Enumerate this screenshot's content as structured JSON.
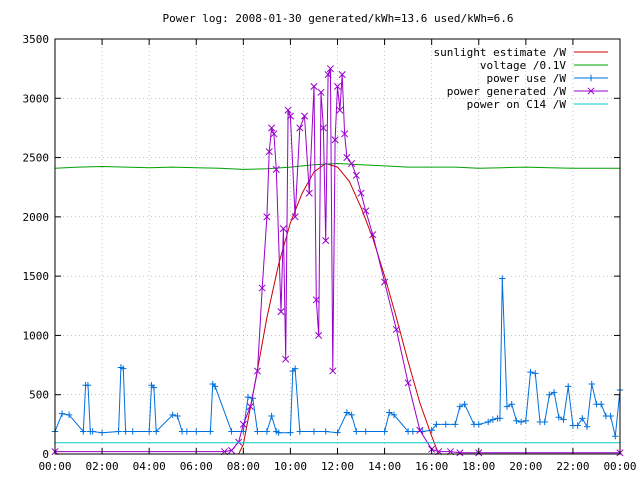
{
  "chart_data": {
    "type": "line",
    "title": "Power log: 2008-01-30 generated/kWh=13.6 used/kWh=6.6",
    "xlabel": "",
    "ylabel": "",
    "x_unit": "hours",
    "xlim": [
      0,
      24
    ],
    "ylim": [
      0,
      3500
    ],
    "grid": true,
    "legend_position": "top-right",
    "x_ticks": [
      {
        "value": 0,
        "label": "00:00"
      },
      {
        "value": 2,
        "label": "02:00"
      },
      {
        "value": 4,
        "label": "04:00"
      },
      {
        "value": 6,
        "label": "06:00"
      },
      {
        "value": 8,
        "label": "08:00"
      },
      {
        "value": 10,
        "label": "10:00"
      },
      {
        "value": 12,
        "label": "12:00"
      },
      {
        "value": 14,
        "label": "14:00"
      },
      {
        "value": 16,
        "label": "16:00"
      },
      {
        "value": 18,
        "label": "18:00"
      },
      {
        "value": 20,
        "label": "20:00"
      },
      {
        "value": 22,
        "label": "22:00"
      },
      {
        "value": 24,
        "label": "00:00"
      }
    ],
    "y_ticks": [
      0,
      500,
      1000,
      1500,
      2000,
      2500,
      3000,
      3500
    ],
    "series": [
      {
        "name": "sunlight estimate /W",
        "color": "#cc0000",
        "marker": "none",
        "x": [
          0,
          7.8,
          8.0,
          8.5,
          9.0,
          9.5,
          10.0,
          10.5,
          11.0,
          11.5,
          12.0,
          12.5,
          13.0,
          13.5,
          14.0,
          14.5,
          15.0,
          15.5,
          16.0,
          16.3,
          24
        ],
        "y": [
          0,
          0,
          80,
          600,
          1150,
          1600,
          1950,
          2200,
          2380,
          2450,
          2420,
          2300,
          2080,
          1820,
          1500,
          1150,
          780,
          430,
          150,
          0,
          0
        ]
      },
      {
        "name": "voltage /0.1V",
        "color": "#00a000",
        "marker": "none",
        "x": [
          0,
          1,
          2,
          3,
          4,
          5,
          6,
          7,
          8,
          9,
          10,
          11,
          12,
          13,
          14,
          15,
          16,
          17,
          18,
          19,
          20,
          21,
          22,
          23,
          24
        ],
        "y": [
          2410,
          2420,
          2425,
          2420,
          2415,
          2420,
          2415,
          2410,
          2400,
          2405,
          2420,
          2440,
          2450,
          2440,
          2430,
          2420,
          2420,
          2420,
          2410,
          2415,
          2420,
          2415,
          2410,
          2410,
          2410
        ]
      },
      {
        "name": "power use /W",
        "color": "#0070dd",
        "marker": "plus",
        "x": [
          0,
          0.3,
          0.6,
          1.2,
          1.3,
          1.4,
          1.5,
          1.6,
          2.0,
          2.7,
          2.8,
          2.9,
          3.0,
          3.3,
          4.0,
          4.1,
          4.2,
          4.3,
          5.0,
          5.2,
          5.4,
          5.6,
          6.0,
          6.6,
          6.7,
          6.8,
          7.5,
          8.0,
          8.2,
          8.4,
          8.6,
          9.0,
          9.2,
          9.4,
          9.5,
          10.0,
          10.1,
          10.2,
          10.4,
          11.0,
          11.5,
          12.0,
          12.4,
          12.6,
          12.8,
          13.2,
          14.0,
          14.2,
          14.4,
          15.0,
          15.2,
          15.6,
          16.0,
          16.2,
          16.6,
          17.0,
          17.2,
          17.4,
          17.8,
          18.0,
          18.4,
          18.6,
          18.8,
          18.9,
          19.0,
          19.2,
          19.4,
          19.6,
          19.8,
          20.0,
          20.2,
          20.4,
          20.6,
          20.8,
          21.0,
          21.2,
          21.4,
          21.6,
          21.8,
          22.0,
          22.2,
          22.4,
          22.6,
          22.8,
          23.0,
          23.2,
          23.4,
          23.6,
          23.8,
          24.0
        ],
        "y": [
          190,
          340,
          330,
          190,
          580,
          580,
          190,
          190,
          180,
          190,
          730,
          720,
          190,
          190,
          190,
          580,
          560,
          190,
          330,
          320,
          190,
          190,
          190,
          190,
          590,
          570,
          190,
          190,
          480,
          470,
          190,
          190,
          320,
          190,
          180,
          180,
          700,
          720,
          190,
          190,
          190,
          180,
          350,
          330,
          190,
          190,
          190,
          350,
          330,
          190,
          190,
          190,
          200,
          250,
          250,
          250,
          400,
          420,
          250,
          250,
          270,
          290,
          300,
          300,
          1480,
          400,
          420,
          280,
          270,
          280,
          690,
          680,
          270,
          270,
          500,
          520,
          310,
          290,
          570,
          240,
          240,
          300,
          230,
          590,
          420,
          420,
          320,
          320,
          150,
          540
        ]
      },
      {
        "name": "power generated /W",
        "color": "#9900cc",
        "marker": "x",
        "x": [
          0,
          7.2,
          7.5,
          7.8,
          8.0,
          8.3,
          8.6,
          8.8,
          9.0,
          9.1,
          9.2,
          9.3,
          9.4,
          9.6,
          9.7,
          9.8,
          9.9,
          10.0,
          10.2,
          10.4,
          10.6,
          10.8,
          11.0,
          11.1,
          11.2,
          11.3,
          11.4,
          11.5,
          11.6,
          11.7,
          11.8,
          11.9,
          12.0,
          12.1,
          12.2,
          12.3,
          12.4,
          12.6,
          12.8,
          13.0,
          13.2,
          13.5,
          14.0,
          14.5,
          15.0,
          15.5,
          16.0,
          16.3,
          16.8,
          17.2,
          18.0,
          24
        ],
        "y": [
          20,
          20,
          30,
          100,
          250,
          400,
          700,
          1400,
          2000,
          2550,
          2750,
          2700,
          2400,
          1200,
          1900,
          800,
          2900,
          2850,
          2000,
          2750,
          2850,
          2200,
          3100,
          1300,
          1000,
          3050,
          2750,
          1800,
          3200,
          3250,
          700,
          2650,
          3100,
          2900,
          3200,
          2700,
          2500,
          2450,
          2350,
          2200,
          2050,
          1850,
          1450,
          1050,
          600,
          200,
          40,
          20,
          20,
          10,
          10,
          10
        ]
      },
      {
        "name": "power on C14 /W",
        "color": "#00c8c8",
        "marker": "none",
        "x": [
          0,
          24
        ],
        "y": [
          95,
          95
        ]
      }
    ]
  }
}
